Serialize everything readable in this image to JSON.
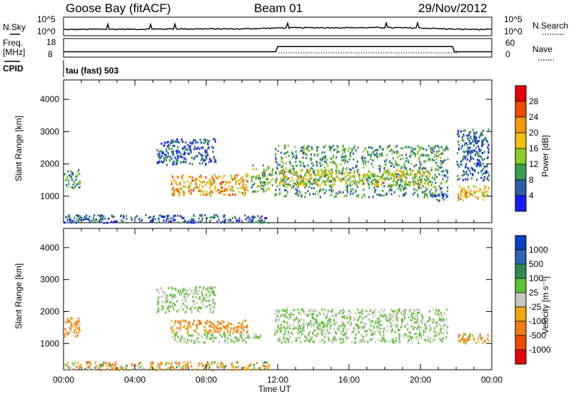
{
  "header": {
    "station": "Goose Bay (fitACF)",
    "beam": "Beam 01",
    "date": "29/Nov/2012"
  },
  "nsky_panel": {
    "left_label": "N.Sky",
    "right_label": "N.Search",
    "left_ticks": [
      "10^5",
      "10^0"
    ],
    "right_ticks": [
      "10^5",
      "10^0"
    ]
  },
  "freq_panel": {
    "left_label_line1": "Freq.",
    "left_label_line2": "[MHz]",
    "right_label": "Nave",
    "left_ticks": [
      "18",
      "8"
    ],
    "right_ticks": [
      "60",
      "0"
    ]
  },
  "cpid_panel": {
    "label": "CPID",
    "text": "tau (fast) 503"
  },
  "time_axis": {
    "label": "Time UT",
    "ticks": [
      "00:00",
      "04:00",
      "08:00",
      "12:00",
      "16:00",
      "20:00",
      "00:00"
    ]
  },
  "power_colorbar": {
    "title": "Power [dB]",
    "ticks": [
      "28",
      "24",
      "20",
      "16",
      "12",
      "8",
      "4"
    ],
    "colors": [
      "#e8000b",
      "#f04a00",
      "#f5960f",
      "#f2c10a",
      "#8ccc2a",
      "#3a9b52",
      "#2e5fa6",
      "#1a1aff"
    ]
  },
  "velocity_colorbar": {
    "title": "Velocity [m s⁻¹]",
    "ticks": [
      "1000",
      "500",
      "100",
      "25",
      "-25",
      "-100",
      "-500",
      "-1000"
    ],
    "colors": [
      "#0a3fc7",
      "#2d64b8",
      "#2e8a55",
      "#5ec335",
      "#c8c8c2",
      "#f2a60f",
      "#f57a12",
      "#f04a00",
      "#e8000b"
    ]
  },
  "chart_data": [
    {
      "type": "heatmap",
      "title": "Power",
      "xlabel": "Time UT",
      "ylabel": "Slant Range [km]",
      "x_ticks": [
        "00:00",
        "04:00",
        "08:00",
        "12:00",
        "16:00",
        "20:00",
        "00:00"
      ],
      "xlim_hours": [
        0,
        24
      ],
      "y_ticks": [
        1000,
        2000,
        3000,
        4000
      ],
      "ylim": [
        180,
        4600
      ],
      "colorbar": {
        "label": "Power [dB]",
        "ticks": [
          4,
          8,
          12,
          16,
          20,
          24,
          28
        ]
      },
      "regions": [
        {
          "t0": 0.0,
          "t1": 0.9,
          "r0": 1250,
          "r1": 1850,
          "power": 10
        },
        {
          "t0": 0.0,
          "t1": 11.5,
          "r0": 200,
          "r1": 450,
          "power": 6
        },
        {
          "t0": 5.2,
          "t1": 8.5,
          "r0": 2000,
          "r1": 2800,
          "power": 6
        },
        {
          "t0": 6.0,
          "t1": 10.3,
          "r0": 1050,
          "r1": 1700,
          "power": 20
        },
        {
          "t0": 10.5,
          "t1": 11.7,
          "r0": 1150,
          "r1": 2000,
          "power": 12
        },
        {
          "t0": 11.8,
          "t1": 21.5,
          "r0": 1000,
          "r1": 2600,
          "power": 10
        },
        {
          "t0": 12.0,
          "t1": 20.5,
          "r0": 1350,
          "r1": 1850,
          "power": 16
        },
        {
          "t0": 20.5,
          "t1": 21.5,
          "r0": 850,
          "r1": 1100,
          "power": 6
        },
        {
          "t0": 22.0,
          "t1": 23.8,
          "r0": 900,
          "r1": 1350,
          "power": 20
        },
        {
          "t0": 22.0,
          "t1": 23.8,
          "r0": 1500,
          "r1": 3100,
          "power": 6
        }
      ]
    },
    {
      "type": "heatmap",
      "title": "Velocity",
      "xlabel": "Time UT",
      "ylabel": "Slant Range [km]",
      "x_ticks": [
        "00:00",
        "04:00",
        "08:00",
        "12:00",
        "16:00",
        "20:00",
        "00:00"
      ],
      "xlim_hours": [
        0,
        24
      ],
      "y_ticks": [
        1000,
        2000,
        3000,
        4000
      ],
      "ylim": [
        180,
        4600
      ],
      "colorbar": {
        "label": "Velocity [m s⁻¹]",
        "ticks": [
          1000,
          500,
          100,
          25,
          -25,
          -100,
          -500,
          -1000
        ]
      },
      "regions": [
        {
          "t0": 0.0,
          "t1": 0.9,
          "r0": 1250,
          "r1": 1850,
          "velocity": -300
        },
        {
          "t0": 0.0,
          "t1": 11.5,
          "r0": 200,
          "r1": 450,
          "velocity": -150
        },
        {
          "t0": 5.2,
          "t1": 8.5,
          "r0": 2000,
          "r1": 2800,
          "velocity": 0
        },
        {
          "t0": 6.0,
          "t1": 10.3,
          "r0": 1350,
          "r1": 1750,
          "velocity": -300
        },
        {
          "t0": 6.0,
          "t1": 11.0,
          "r0": 1050,
          "r1": 1350,
          "velocity": 0
        },
        {
          "t0": 11.8,
          "t1": 21.5,
          "r0": 1050,
          "r1": 2100,
          "velocity": 0
        },
        {
          "t0": 22.0,
          "t1": 23.8,
          "r0": 1000,
          "r1": 1350,
          "velocity": -200
        }
      ]
    },
    {
      "type": "line",
      "title": "N.Sky",
      "x_hours": [
        0,
        2,
        4,
        6,
        8,
        10,
        12,
        14,
        16,
        18,
        20,
        22,
        24
      ],
      "y_log10": [
        1.5,
        1.6,
        1.6,
        1.7,
        1.7,
        1.7,
        2.0,
        2.1,
        2.1,
        2.1,
        2.0,
        1.6,
        1.5
      ],
      "ylim_log10": [
        0,
        5
      ]
    },
    {
      "type": "line",
      "title": "Freq. [MHz]",
      "x_hours": [
        0,
        11.9,
        12.0,
        21.8,
        21.9,
        24
      ],
      "y": [
        10.5,
        10.5,
        13.8,
        13.8,
        10.5,
        10.5
      ],
      "ylim": [
        8,
        18
      ]
    }
  ]
}
